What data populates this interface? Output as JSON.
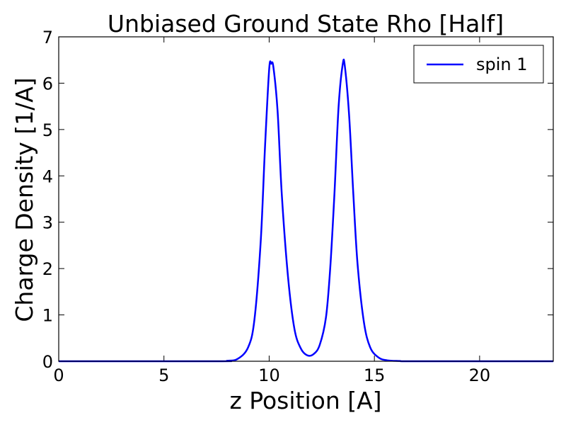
{
  "chart_data": {
    "type": "line",
    "title": "Unbiased Ground State Rho [Half]",
    "xlabel": "z Position [A]",
    "ylabel": "Charge Density [1/A]",
    "xlim": [
      0,
      23.5
    ],
    "ylim": [
      0,
      7
    ],
    "xticks": [
      0,
      5,
      10,
      15,
      20
    ],
    "yticks": [
      0,
      1,
      2,
      3,
      4,
      5,
      6,
      7
    ],
    "grid": false,
    "legend": {
      "placement": "top-right",
      "entries": [
        "spin 1"
      ]
    },
    "series": [
      {
        "name": "spin 1",
        "color": "#0000ff",
        "x": [
          0,
          7.5,
          8.0,
          8.5,
          9.0,
          9.3,
          9.6,
          9.8,
          10.0,
          10.1,
          10.2,
          10.4,
          10.6,
          10.9,
          11.2,
          11.5,
          11.8,
          12.1,
          12.4,
          12.7,
          12.9,
          13.1,
          13.3,
          13.5,
          13.6,
          13.8,
          14.0,
          14.2,
          14.5,
          14.8,
          15.2,
          15.6,
          16.2,
          17.0,
          23.5
        ],
        "y": [
          0,
          0.0,
          0.01,
          0.05,
          0.3,
          0.9,
          2.6,
          4.6,
          6.3,
          6.42,
          6.35,
          5.4,
          3.6,
          1.8,
          0.7,
          0.28,
          0.13,
          0.15,
          0.35,
          0.95,
          2.0,
          3.6,
          5.5,
          6.42,
          6.35,
          5.3,
          3.6,
          2.1,
          0.85,
          0.3,
          0.08,
          0.02,
          0.005,
          0.0,
          0
        ]
      }
    ]
  }
}
